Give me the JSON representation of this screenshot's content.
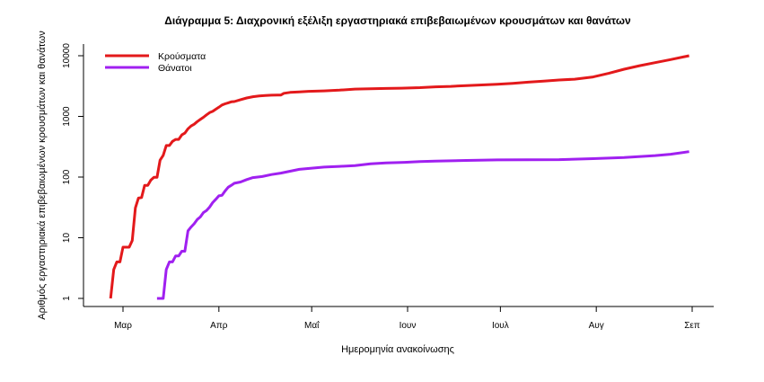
{
  "chart_data": {
    "type": "line",
    "title": "Διάγραμμα 5: Διαχρονική εξέλιξη εργαστηριακά επιβεβαιωμένων κρουσμάτων και θανάτων",
    "xlabel": "Ημερομηνία ανακοίνωσης",
    "ylabel": "Αριθμός εργαστηριακά επιβεβαιωμένων κρουσμάτων και θανάτων",
    "y_scale": "log",
    "ylim": [
      1,
      10000
    ],
    "xlim": [
      "2020-02-26",
      "2020-08-31"
    ],
    "grid": false,
    "legend_position": "top-left",
    "x_ticks": [
      {
        "date": "2020-03-01",
        "label": "Μαρ"
      },
      {
        "date": "2020-04-01",
        "label": "Απρ"
      },
      {
        "date": "2020-05-01",
        "label": "Μαΐ"
      },
      {
        "date": "2020-06-01",
        "label": "Ιουν"
      },
      {
        "date": "2020-07-01",
        "label": "Ιουλ"
      },
      {
        "date": "2020-08-01",
        "label": "Αυγ"
      },
      {
        "date": "2020-09-01",
        "label": "Σεπ"
      }
    ],
    "y_ticks": [
      {
        "value": 1,
        "label": "1"
      },
      {
        "value": 10,
        "label": "10"
      },
      {
        "value": 100,
        "label": "100"
      },
      {
        "value": 1000,
        "label": "1000"
      },
      {
        "value": 10000,
        "label": "10000"
      }
    ],
    "series": [
      {
        "name": "Κρούσματα",
        "color": "#e3191b",
        "points": [
          [
            "2020-02-26",
            1
          ],
          [
            "2020-02-27",
            3
          ],
          [
            "2020-02-28",
            4
          ],
          [
            "2020-02-29",
            4
          ],
          [
            "2020-03-01",
            7
          ],
          [
            "2020-03-02",
            7
          ],
          [
            "2020-03-03",
            7
          ],
          [
            "2020-03-04",
            9
          ],
          [
            "2020-03-05",
            31
          ],
          [
            "2020-03-06",
            45
          ],
          [
            "2020-03-07",
            46
          ],
          [
            "2020-03-08",
            73
          ],
          [
            "2020-03-09",
            73
          ],
          [
            "2020-03-10",
            89
          ],
          [
            "2020-03-11",
            99
          ],
          [
            "2020-03-12",
            99
          ],
          [
            "2020-03-13",
            190
          ],
          [
            "2020-03-14",
            228
          ],
          [
            "2020-03-15",
            331
          ],
          [
            "2020-03-16",
            331
          ],
          [
            "2020-03-17",
            387
          ],
          [
            "2020-03-18",
            418
          ],
          [
            "2020-03-19",
            418
          ],
          [
            "2020-03-20",
            495
          ],
          [
            "2020-03-21",
            530
          ],
          [
            "2020-03-22",
            624
          ],
          [
            "2020-03-23",
            695
          ],
          [
            "2020-03-24",
            743
          ],
          [
            "2020-03-25",
            821
          ],
          [
            "2020-03-26",
            892
          ],
          [
            "2020-03-27",
            966
          ],
          [
            "2020-03-28",
            1061
          ],
          [
            "2020-03-29",
            1156
          ],
          [
            "2020-03-30",
            1212
          ],
          [
            "2020-03-31",
            1314
          ],
          [
            "2020-04-01",
            1415
          ],
          [
            "2020-04-02",
            1544
          ],
          [
            "2020-04-03",
            1613
          ],
          [
            "2020-04-04",
            1673
          ],
          [
            "2020-04-05",
            1735
          ],
          [
            "2020-04-06",
            1755
          ],
          [
            "2020-04-08",
            1884
          ],
          [
            "2020-04-10",
            2011
          ],
          [
            "2020-04-12",
            2114
          ],
          [
            "2020-04-14",
            2170
          ],
          [
            "2020-04-16",
            2207
          ],
          [
            "2020-04-18",
            2235
          ],
          [
            "2020-04-20",
            2245
          ],
          [
            "2020-04-21",
            2245
          ],
          [
            "2020-04-22",
            2401
          ],
          [
            "2020-04-24",
            2490
          ],
          [
            "2020-04-27",
            2534
          ],
          [
            "2020-04-30",
            2591
          ],
          [
            "2020-05-05",
            2632
          ],
          [
            "2020-05-10",
            2710
          ],
          [
            "2020-05-15",
            2819
          ],
          [
            "2020-05-20",
            2850
          ],
          [
            "2020-05-25",
            2892
          ],
          [
            "2020-05-30",
            2915
          ],
          [
            "2020-06-05",
            2980
          ],
          [
            "2020-06-10",
            3068
          ],
          [
            "2020-06-15",
            3121
          ],
          [
            "2020-06-20",
            3227
          ],
          [
            "2020-06-25",
            3302
          ],
          [
            "2020-06-30",
            3390
          ],
          [
            "2020-07-05",
            3511
          ],
          [
            "2020-07-10",
            3672
          ],
          [
            "2020-07-15",
            3826
          ],
          [
            "2020-07-20",
            3983
          ],
          [
            "2020-07-25",
            4110
          ],
          [
            "2020-07-31",
            4477
          ],
          [
            "2020-08-05",
            5123
          ],
          [
            "2020-08-10",
            6000
          ],
          [
            "2020-08-15",
            6858
          ],
          [
            "2020-08-20",
            7684
          ],
          [
            "2020-08-25",
            8644
          ],
          [
            "2020-08-31",
            10000
          ]
        ]
      },
      {
        "name": "Θάνατοι",
        "color": "#a020f0",
        "points": [
          [
            "2020-03-12",
            1
          ],
          [
            "2020-03-13",
            1
          ],
          [
            "2020-03-14",
            1
          ],
          [
            "2020-03-15",
            3
          ],
          [
            "2020-03-16",
            4
          ],
          [
            "2020-03-17",
            4
          ],
          [
            "2020-03-18",
            5
          ],
          [
            "2020-03-19",
            5
          ],
          [
            "2020-03-20",
            6
          ],
          [
            "2020-03-21",
            6
          ],
          [
            "2020-03-22",
            13
          ],
          [
            "2020-03-23",
            15
          ],
          [
            "2020-03-24",
            17
          ],
          [
            "2020-03-25",
            20
          ],
          [
            "2020-03-26",
            22
          ],
          [
            "2020-03-27",
            26
          ],
          [
            "2020-03-28",
            28
          ],
          [
            "2020-03-29",
            32
          ],
          [
            "2020-03-30",
            38
          ],
          [
            "2020-03-31",
            43
          ],
          [
            "2020-04-01",
            49
          ],
          [
            "2020-04-02",
            50
          ],
          [
            "2020-04-03",
            59
          ],
          [
            "2020-04-04",
            68
          ],
          [
            "2020-04-05",
            73
          ],
          [
            "2020-04-06",
            79
          ],
          [
            "2020-04-08",
            83
          ],
          [
            "2020-04-10",
            91
          ],
          [
            "2020-04-12",
            98
          ],
          [
            "2020-04-15",
            102
          ],
          [
            "2020-04-18",
            110
          ],
          [
            "2020-04-21",
            116
          ],
          [
            "2020-04-24",
            125
          ],
          [
            "2020-04-27",
            134
          ],
          [
            "2020-05-01",
            140
          ],
          [
            "2020-05-05",
            146
          ],
          [
            "2020-05-10",
            150
          ],
          [
            "2020-05-15",
            155
          ],
          [
            "2020-05-20",
            165
          ],
          [
            "2020-05-25",
            171
          ],
          [
            "2020-05-31",
            175
          ],
          [
            "2020-06-05",
            180
          ],
          [
            "2020-06-10",
            183
          ],
          [
            "2020-06-20",
            188
          ],
          [
            "2020-06-30",
            192
          ],
          [
            "2020-07-10",
            193
          ],
          [
            "2020-07-20",
            194
          ],
          [
            "2020-07-31",
            201
          ],
          [
            "2020-08-10",
            210
          ],
          [
            "2020-08-20",
            226
          ],
          [
            "2020-08-25",
            238
          ],
          [
            "2020-08-31",
            263
          ]
        ]
      }
    ]
  }
}
